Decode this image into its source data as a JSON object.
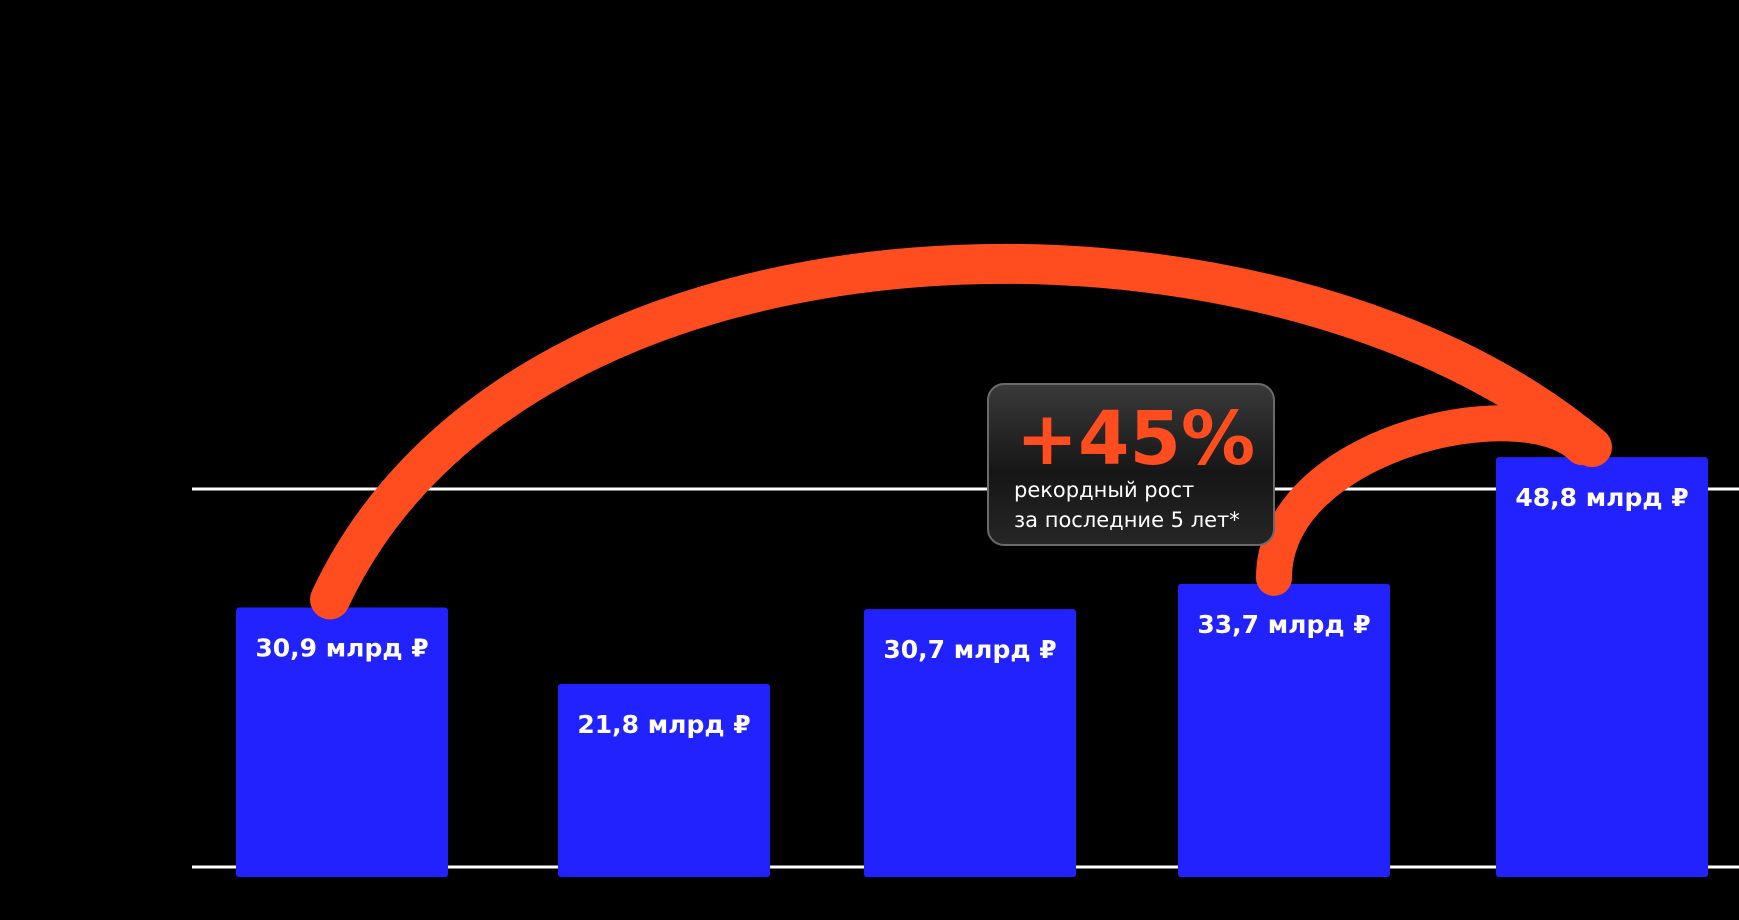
{
  "chart_data": {
    "type": "bar",
    "title": "",
    "xlabel": "",
    "ylabel": "",
    "ylim": [
      0,
      50
    ],
    "grid": true,
    "categories": [
      "",
      "",
      "",
      "",
      ""
    ],
    "values": [
      30.9,
      21.8,
      30.7,
      33.7,
      48.8
    ],
    "data_labels": [
      "30,9 млрд ₽",
      "21,8 млрд ₽",
      "30,7 млрд ₽",
      "33,7 млрд ₽",
      "48,8 млрд ₽"
    ],
    "annotation": {
      "value": "+45%",
      "text_line1": "рекордный рост",
      "text_line2": "за последние 5 лет*"
    }
  },
  "colors": {
    "background": "#000000",
    "bar": "#2222ff",
    "arc": "#ff4d1f",
    "gridline": "#ffffff",
    "callout_bg": "#1e1e1e"
  }
}
